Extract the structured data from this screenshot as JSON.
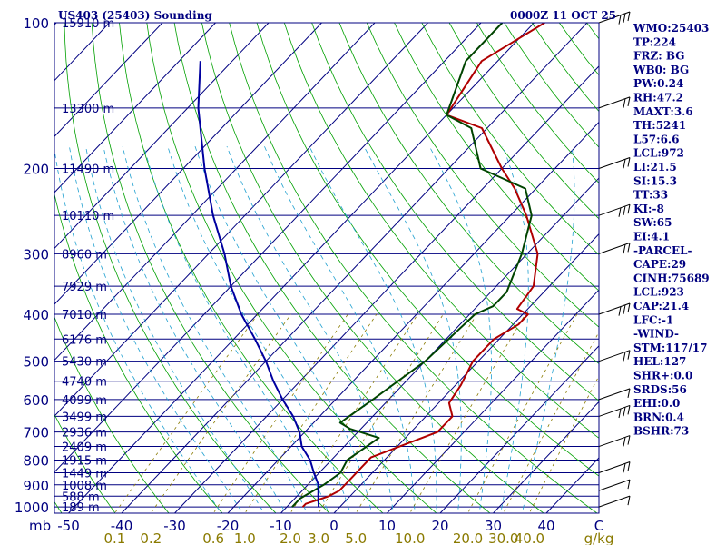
{
  "chart_data": {
    "type": "skew-t sounding",
    "title_left": "US403 (25403) Sounding",
    "title_right": "0000Z 11 OCT 25",
    "units": {
      "pressure": "mb",
      "temperature": "C",
      "mixing_ratio": "g/kg"
    },
    "pressure_levels": [
      100,
      200,
      300,
      400,
      500,
      600,
      700,
      800,
      900,
      1000
    ],
    "pressure_range": [
      100,
      1030
    ],
    "temperature_ticks": [
      -50,
      -40,
      -30,
      -20,
      -10,
      0,
      10,
      20,
      30,
      40,
      "C"
    ],
    "temperature_labels": [
      "-50",
      "-40",
      "-30",
      "-20",
      "-10",
      "0",
      "10",
      "20",
      "30",
      "40",
      "C"
    ],
    "mixing_ratio_ticks": [
      0.1,
      0.2,
      0.6,
      1.0,
      2.0,
      3.0,
      5.0,
      10.0,
      20.0,
      30.0,
      40.0
    ],
    "mixing_ratio_labels": [
      "0.1",
      "0.2",
      "0.6",
      "1.0",
      "2.0",
      "3.0",
      "5.0",
      "10.0",
      "20.0",
      "30.0",
      "40.0",
      "g/kg"
    ],
    "height_labels": [
      {
        "p": 100,
        "text": "15910 m"
      },
      {
        "p": 150,
        "text": "13300 m"
      },
      {
        "p": 200,
        "text": "11490 m"
      },
      {
        "p": 250,
        "text": "10110 m"
      },
      {
        "p": 300,
        "text": "8960 m"
      },
      {
        "p": 350,
        "text": "7929 m"
      },
      {
        "p": 400,
        "text": "7010 m"
      },
      {
        "p": 450,
        "text": "6176 m"
      },
      {
        "p": 500,
        "text": "5430 m"
      },
      {
        "p": 550,
        "text": "4740 m"
      },
      {
        "p": 600,
        "text": "4099 m"
      },
      {
        "p": 650,
        "text": "3499 m"
      },
      {
        "p": 700,
        "text": "2936 m"
      },
      {
        "p": 750,
        "text": "2409 m"
      },
      {
        "p": 800,
        "text": "1915 m"
      },
      {
        "p": 850,
        "text": "1449 m"
      },
      {
        "p": 900,
        "text": "1008 m"
      },
      {
        "p": 950,
        "text": "588 m"
      },
      {
        "p": 1000,
        "text": "189 m"
      }
    ],
    "series": [
      {
        "name": "temperature",
        "color": "#b00000",
        "points": [
          [
            1000,
            -7
          ],
          [
            985,
            -7
          ],
          [
            950,
            -4
          ],
          [
            925,
            -3
          ],
          [
            870,
            -3
          ],
          [
            825,
            -3
          ],
          [
            790,
            -3
          ],
          [
            700,
            5
          ],
          [
            650,
            5
          ],
          [
            610,
            2
          ],
          [
            560,
            1
          ],
          [
            500,
            -1
          ],
          [
            450,
            -1
          ],
          [
            420,
            1
          ],
          [
            400,
            1
          ],
          [
            390,
            -2
          ],
          [
            350,
            -3
          ],
          [
            300,
            -8
          ],
          [
            250,
            -17
          ],
          [
            220,
            -24
          ],
          [
            200,
            -30
          ],
          [
            165,
            -41
          ],
          [
            155,
            -50
          ],
          [
            120,
            -53
          ],
          [
            100,
            -48
          ]
        ]
      },
      {
        "name": "dewpoint",
        "color": "#004400",
        "points": [
          [
            1000,
            -9
          ],
          [
            975,
            -9
          ],
          [
            960,
            -9
          ],
          [
            900,
            -7
          ],
          [
            850,
            -6
          ],
          [
            800,
            -7
          ],
          [
            720,
            -5
          ],
          [
            690,
            -12
          ],
          [
            670,
            -15
          ],
          [
            600,
            -13
          ],
          [
            500,
            -10
          ],
          [
            400,
            -9
          ],
          [
            385,
            -7
          ],
          [
            360,
            -7
          ],
          [
            300,
            -11
          ],
          [
            250,
            -16
          ],
          [
            220,
            -22
          ],
          [
            200,
            -34
          ],
          [
            165,
            -43
          ],
          [
            155,
            -50
          ],
          [
            120,
            -56
          ],
          [
            100,
            -56
          ]
        ]
      },
      {
        "name": "parcel",
        "color": "#0000a0",
        "points": [
          [
            1000,
            -4
          ],
          [
            950,
            -6
          ],
          [
            900,
            -8
          ],
          [
            850,
            -11
          ],
          [
            800,
            -14
          ],
          [
            750,
            -18
          ],
          [
            700,
            -21
          ],
          [
            650,
            -25
          ],
          [
            600,
            -30
          ],
          [
            550,
            -35
          ],
          [
            500,
            -40
          ],
          [
            450,
            -46
          ],
          [
            400,
            -53
          ],
          [
            350,
            -60
          ],
          [
            300,
            -67
          ],
          [
            250,
            -76
          ],
          [
            200,
            -86
          ],
          [
            150,
            -98
          ],
          [
            120,
            -106
          ]
        ]
      }
    ],
    "winds": [
      {
        "p": 100,
        "barbs": 3
      },
      {
        "p": 150,
        "barbs": 2
      },
      {
        "p": 200,
        "barbs": 2
      },
      {
        "p": 250,
        "barbs": 3
      },
      {
        "p": 300,
        "barbs": 2
      },
      {
        "p": 400,
        "barbs": 3
      },
      {
        "p": 500,
        "barbs": 2
      },
      {
        "p": 600,
        "barbs": 1
      },
      {
        "p": 650,
        "barbs": 3
      },
      {
        "p": 750,
        "barbs": 2
      },
      {
        "p": 850,
        "barbs": 2
      },
      {
        "p": 925,
        "barbs": 1
      },
      {
        "p": 1000,
        "barbs": 1
      }
    ],
    "indices": [
      "WMO:25403",
      "TP:224",
      "FRZ: BG",
      "WB0: BG",
      "PW:0.24",
      "RH:47.2",
      "MAXT:3.6",
      "TH:5241",
      "L57:6.6",
      "LCL:972",
      "LI:21.5",
      "SI:15.3",
      "TT:33",
      "KI:-8",
      "SW:65",
      "EI:4.1",
      "-PARCEL-",
      "CAPE:29",
      "CINH:75689",
      "LCL:923",
      "CAP:21.4",
      "LFC:-1",
      "-WIND-",
      "STM:117/17",
      "HEL:127",
      "SHR+:0.0",
      "SRDS:56",
      "EHI:0.0",
      "BRN:0.4",
      "BSHR:73"
    ],
    "colors": {
      "isobar": "#000080",
      "isotherm": "#000080",
      "dry_adiabat": "#00a000",
      "moist_adiabat": "#20a0d0",
      "mixing_ratio": "#8a7a00",
      "frame": "#000080"
    }
  }
}
